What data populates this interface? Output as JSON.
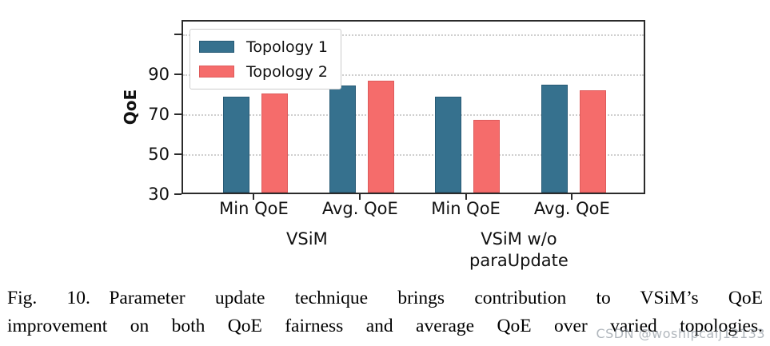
{
  "chart_data": {
    "type": "bar",
    "title": "",
    "ylabel": "QoE",
    "categories": [
      "Min QoE",
      "Avg. QoE",
      "Min QoE",
      "Avg. QoE"
    ],
    "group_labels": [
      {
        "lines": [
          "VSiM"
        ],
        "span": [
          0,
          1
        ]
      },
      {
        "lines": [
          "VSiM w/o",
          "paraUpdate"
        ],
        "span": [
          2,
          3
        ]
      }
    ],
    "series": [
      {
        "name": "Topology 1",
        "color": "#36718E",
        "edge_color": "#275A75",
        "values": [
          78,
          83.5,
          78,
          84
        ]
      },
      {
        "name": "Topology 2",
        "color": "#F56C6B",
        "edge_color": "#DE5B5B",
        "values": [
          79.5,
          86,
          66.5,
          81
        ]
      }
    ],
    "ylim": [
      30,
      117
    ],
    "yticks": [
      {
        "value": 30,
        "label": "30"
      },
      {
        "value": 50,
        "label": "50"
      },
      {
        "value": 70,
        "label": "70"
      },
      {
        "value": 90,
        "label": "90"
      },
      {
        "value": 110,
        "label": ""
      }
    ],
    "grid": "horizontal dotted",
    "legend_position": "upper-left"
  },
  "caption": {
    "line1": "Fig. 10. Parameter update technique brings contribution to VSiM’s QoE",
    "line2": "improvement on both QoE fairness and average QoE over varied topologies."
  },
  "watermark": "CSDN @woshipcaij12133"
}
